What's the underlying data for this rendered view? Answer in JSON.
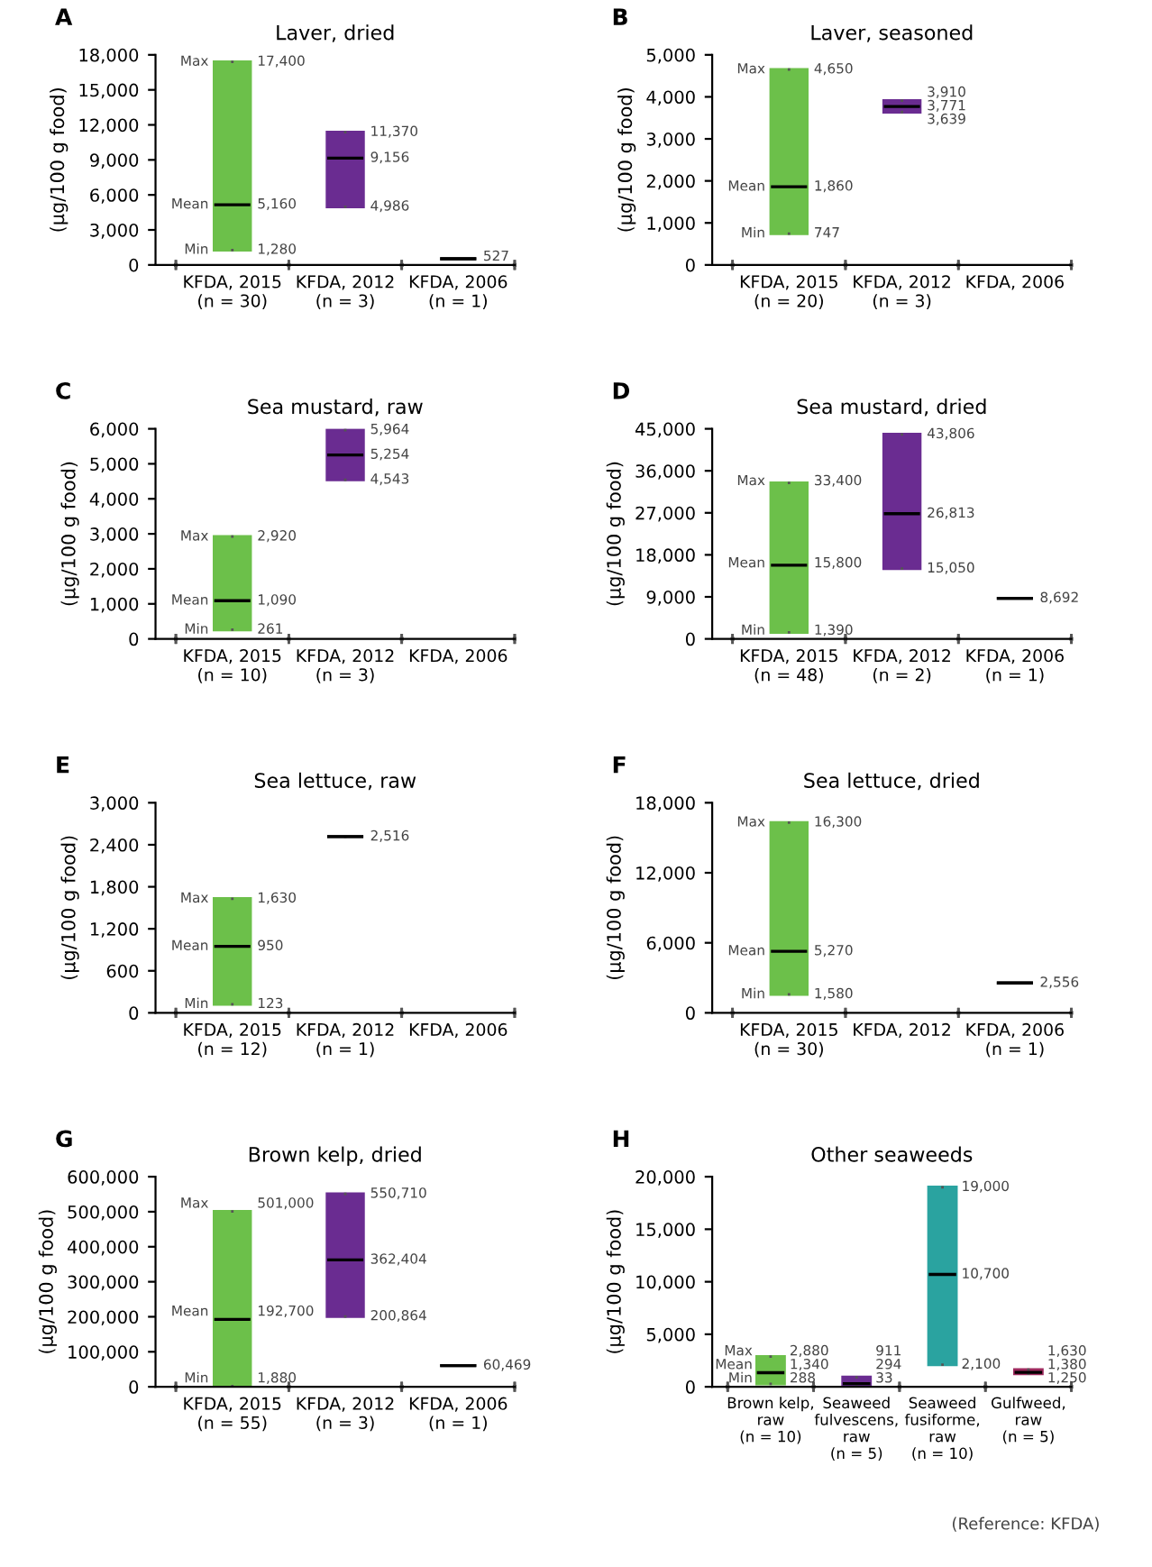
{
  "chart_data": [
    {
      "type": "box",
      "title": "Laver, dried",
      "ylabel": "(μg/100 g food)",
      "categories": [
        "KFDA, 2015\n(n = 30)",
        "KFDA, 2012\n(n = 3)",
        "KFDA, 2006\n(n = 1)"
      ],
      "boxes": [
        {
          "low": 1280,
          "q1": 1280,
          "median": 5160,
          "q3": 17400,
          "high": 17400
        },
        {
          "low": 4986,
          "q1": 4986,
          "median": 9156,
          "q3": 11370,
          "high": 11370
        },
        {
          "low": 527,
          "q1": 527,
          "median": 527,
          "q3": 527,
          "high": 527
        }
      ],
      "value_labels": [
        [
          "1,280",
          "5,160",
          "17,400"
        ],
        [
          "4,986",
          "9,156",
          "11,370"
        ],
        [
          "527"
        ]
      ],
      "colors": [
        "#6cc04a",
        "#6a2c91",
        "#222222"
      ],
      "ylim": [
        0,
        18000
      ],
      "yticks": [
        0,
        {
          "value": 3000,
          "label": "3,000"
        },
        {
          "value": 6000,
          "label": "6,000"
        },
        {
          "value": 9000,
          "label": "9,000"
        },
        {
          "value": 12000,
          "label": "12,000"
        },
        {
          "value": 15000,
          "label": "15,000"
        },
        {
          "value": 18000,
          "label": "18,000"
        }
      ],
      "data_labels": true,
      "annotations": [
        "A",
        {
          "text": "Max",
          "x": "KFDA, 2015\n(n = 30)",
          "y": 17400
        },
        {
          "text": "Mean",
          "x": "KFDA, 2015\n(n = 30)",
          "y": 5160
        },
        {
          "text": "Min",
          "x": "KFDA, 2015\n(n = 30)",
          "y": 1280
        }
      ]
    },
    {
      "type": "box",
      "title": "Laver, seasoned",
      "ylabel": "(μg/100 g food)",
      "categories": [
        "KFDA, 2015\n(n = 20)",
        "KFDA, 2012\n(n = 3)",
        "KFDA, 2006"
      ],
      "boxes": [
        {
          "low": 747,
          "q1": 747,
          "median": 1860,
          "q3": 4650,
          "high": 4650
        },
        {
          "low": 3639,
          "q1": 3639,
          "median": 3771,
          "q3": 3910,
          "high": 3910
        },
        null
      ],
      "value_labels": [
        [
          "747",
          "1,860",
          "4,650"
        ],
        [
          "3,639",
          "3,771",
          "3,910"
        ],
        null
      ],
      "colors": [
        "#6cc04a",
        "#6a2c91",
        null
      ],
      "ylim": [
        0,
        5000
      ],
      "yticks": [
        0,
        {
          "value": 1000,
          "label": "1,000"
        },
        {
          "value": 2000,
          "label": "2,000"
        },
        {
          "value": 3000,
          "label": "3,000"
        },
        {
          "value": 4000,
          "label": "4,000"
        },
        {
          "value": 5000,
          "label": "5,000"
        }
      ],
      "data_labels": true,
      "annotations": [
        "B",
        {
          "text": "Max",
          "x": "KFDA, 2015\n(n = 20)",
          "y": 4650
        },
        {
          "text": "Mean",
          "x": "KFDA, 2015\n(n = 20)",
          "y": 1860
        },
        {
          "text": "Min",
          "x": "KFDA, 2015\n(n = 20)",
          "y": 747
        }
      ]
    },
    {
      "type": "box",
      "title": "Sea mustard, raw",
      "ylabel": "(μg/100 g food)",
      "categories": [
        "KFDA, 2015\n(n = 10)",
        "KFDA, 2012\n(n = 3)",
        "KFDA, 2006"
      ],
      "boxes": [
        {
          "low": 261,
          "q1": 261,
          "median": 1090,
          "q3": 2920,
          "high": 2920
        },
        {
          "low": 4543,
          "q1": 4543,
          "median": 5254,
          "q3": 5964,
          "high": 5964
        },
        null
      ],
      "value_labels": [
        [
          "261",
          "1,090",
          "2,920"
        ],
        [
          "4,543",
          "5,254",
          "5,964"
        ],
        null
      ],
      "colors": [
        "#6cc04a",
        "#6a2c91",
        null
      ],
      "ylim": [
        0,
        6000
      ],
      "yticks": [
        0,
        {
          "value": 1000,
          "label": "1,000"
        },
        {
          "value": 2000,
          "label": "2,000"
        },
        {
          "value": 3000,
          "label": "3,000"
        },
        {
          "value": 4000,
          "label": "4,000"
        },
        {
          "value": 5000,
          "label": "5,000"
        },
        {
          "value": 6000,
          "label": "6,000"
        }
      ],
      "data_labels": true,
      "annotations": [
        "C",
        {
          "text": "Max",
          "x": "KFDA, 2015\n(n = 10)",
          "y": 2920
        },
        {
          "text": "Mean",
          "x": "KFDA, 2015\n(n = 10)",
          "y": 1090
        },
        {
          "text": "Min",
          "x": "KFDA, 2015\n(n = 10)",
          "y": 261
        }
      ]
    },
    {
      "type": "box",
      "title": "Sea mustard, dried",
      "ylabel": "(μg/100 g food)",
      "categories": [
        "KFDA, 2015\n(n = 48)",
        "KFDA, 2012\n(n = 2)",
        "KFDA, 2006\n(n = 1)"
      ],
      "boxes": [
        {
          "low": 1390,
          "q1": 1390,
          "median": 15800,
          "q3": 33400,
          "high": 33400
        },
        {
          "low": 15050,
          "q1": 15050,
          "median": 26813,
          "q3": 43806,
          "high": 43806
        },
        {
          "low": 8692,
          "q1": 8692,
          "median": 8692,
          "q3": 8692,
          "high": 8692
        }
      ],
      "value_labels": [
        [
          "1,390",
          "15,800",
          "33,400"
        ],
        [
          "15,050",
          "26,813",
          "43,806"
        ],
        [
          "8,692"
        ]
      ],
      "colors": [
        "#6cc04a",
        "#6a2c91",
        "#222222"
      ],
      "ylim": [
        0,
        45000
      ],
      "yticks": [
        0,
        {
          "value": 9000,
          "label": "9,000"
        },
        {
          "value": 18000,
          "label": "18,000"
        },
        {
          "value": 27000,
          "label": "27,000"
        },
        {
          "value": 36000,
          "label": "36,000"
        },
        {
          "value": 45000,
          "label": "45,000"
        }
      ],
      "data_labels": true,
      "annotations": [
        "D",
        {
          "text": "Max",
          "x": "KFDA, 2015\n(n = 48)",
          "y": 33400
        },
        {
          "text": "Mean",
          "x": "KFDA, 2015\n(n = 48)",
          "y": 15800
        },
        {
          "text": "Min",
          "x": "KFDA, 2015\n(n = 48)",
          "y": 1390
        }
      ]
    },
    {
      "type": "box",
      "title": "Sea lettuce, raw",
      "ylabel": "(μg/100 g food)",
      "categories": [
        "KFDA, 2015\n(n = 12)",
        "KFDA, 2012\n(n = 1)",
        "KFDA, 2006"
      ],
      "boxes": [
        {
          "low": 123,
          "q1": 123,
          "median": 950,
          "q3": 1630,
          "high": 1630
        },
        {
          "low": 2516,
          "q1": 2516,
          "median": 2516,
          "q3": 2516,
          "high": 2516
        },
        null
      ],
      "value_labels": [
        [
          "123",
          "950",
          "1,630"
        ],
        [
          "2,516"
        ],
        null
      ],
      "colors": [
        "#6cc04a",
        "#222222",
        null
      ],
      "ylim": [
        0,
        3000
      ],
      "yticks": [
        0,
        600,
        {
          "value": 1200,
          "label": "1,200"
        },
        {
          "value": 1800,
          "label": "1,800"
        },
        {
          "value": 2400,
          "label": "2,400"
        },
        {
          "value": 3000,
          "label": "3,000"
        }
      ],
      "data_labels": true,
      "annotations": [
        "E",
        {
          "text": "Max",
          "x": "KFDA, 2015\n(n = 12)",
          "y": 1630
        },
        {
          "text": "Mean",
          "x": "KFDA, 2015\n(n = 12)",
          "y": 950
        },
        {
          "text": "Min",
          "x": "KFDA, 2015\n(n = 12)",
          "y": 123
        }
      ]
    },
    {
      "type": "box",
      "title": "Sea lettuce, dried",
      "ylabel": "(μg/100 g food)",
      "categories": [
        "KFDA, 2015\n(n = 30)",
        "KFDA, 2012",
        "KFDA, 2006\n(n = 1)"
      ],
      "boxes": [
        {
          "low": 1580,
          "q1": 1580,
          "median": 5270,
          "q3": 16300,
          "high": 16300
        },
        null,
        {
          "low": 2556,
          "q1": 2556,
          "median": 2556,
          "q3": 2556,
          "high": 2556
        }
      ],
      "value_labels": [
        [
          "1,580",
          "5,270",
          "16,300"
        ],
        null,
        [
          "2,556"
        ]
      ],
      "colors": [
        "#6cc04a",
        null,
        "#222222"
      ],
      "ylim": [
        0,
        18000
      ],
      "yticks": [
        0,
        {
          "value": 6000,
          "label": "6,000"
        },
        {
          "value": 12000,
          "label": "12,000"
        },
        {
          "value": 18000,
          "label": "18,000"
        }
      ],
      "data_labels": true,
      "annotations": [
        "F",
        {
          "text": "Max",
          "x": "KFDA, 2015\n(n = 30)",
          "y": 16300
        },
        {
          "text": "Mean",
          "x": "KFDA, 2015\n(n = 30)",
          "y": 5270
        },
        {
          "text": "Min",
          "x": "KFDA, 2015\n(n = 30)",
          "y": 1580
        }
      ]
    },
    {
      "type": "box",
      "title": "Brown kelp, dried",
      "ylabel": "(μg/100 g food)",
      "categories": [
        "KFDA, 2015\n(n = 55)",
        "KFDA, 2012\n(n = 3)",
        "KFDA, 2006\n(n = 1)"
      ],
      "boxes": [
        {
          "low": 1880,
          "q1": 1880,
          "median": 192700,
          "q3": 501000,
          "high": 501000
        },
        {
          "low": 200864,
          "q1": 200864,
          "median": 362404,
          "q3": 550710,
          "high": 550710
        },
        {
          "low": 60469,
          "q1": 60469,
          "median": 60469,
          "q3": 60469,
          "high": 60469
        }
      ],
      "value_labels": [
        [
          "1,880",
          "192,700",
          "501,000"
        ],
        [
          "200,864",
          "362,404",
          "550,710"
        ],
        [
          "60,469"
        ]
      ],
      "colors": [
        "#6cc04a",
        "#6a2c91",
        "#222222"
      ],
      "ylim": [
        0,
        600000
      ],
      "yticks": [
        0,
        {
          "value": 100000,
          "label": "100,000"
        },
        {
          "value": 200000,
          "label": "200,000"
        },
        {
          "value": 300000,
          "label": "300,000"
        },
        {
          "value": 400000,
          "label": "400,000"
        },
        {
          "value": 500000,
          "label": "500,000"
        },
        {
          "value": 600000,
          "label": "600,000"
        }
      ],
      "data_labels": true,
      "annotations": [
        "G",
        {
          "text": "Max",
          "x": "KFDA, 2015\n(n = 55)",
          "y": 501000
        },
        {
          "text": "Mean",
          "x": "KFDA, 2015\n(n = 55)",
          "y": 192700
        },
        {
          "text": "Min",
          "x": "KFDA, 2015\n(n = 55)",
          "y": 1880
        }
      ]
    },
    {
      "type": "box",
      "title": "Other seaweeds",
      "ylabel": "(μg/100 g food)",
      "categories": [
        "Brown kelp,\nraw\n(n = 10)",
        "Seaweed\nfulvescens,\nraw\n(n = 5)",
        "Seaweed\nfusiforme,\nraw\n(n = 10)",
        "Gulfweed,\nraw\n(n = 5)"
      ],
      "boxes": [
        {
          "low": 288,
          "q1": 288,
          "median": 1340,
          "q3": 2880,
          "high": 2880
        },
        {
          "low": 33,
          "q1": 33,
          "median": 294,
          "q3": 911,
          "high": 911
        },
        {
          "low": 2100,
          "q1": 2100,
          "median": 10700,
          "q3": 19000,
          "high": 19000
        },
        {
          "low": 1250,
          "q1": 1250,
          "median": 1380,
          "q3": 1630,
          "high": 1630
        }
      ],
      "value_labels": [
        [
          "288",
          "1,340",
          "2,880"
        ],
        [
          "33",
          "294",
          "911"
        ],
        [
          "2,100",
          "10,700",
          "19,000"
        ],
        [
          "1,250",
          "1,380",
          "1,630"
        ]
      ],
      "colors": [
        "#6cc04a",
        "#6a2c91",
        "#2aa3a0",
        "#9e2a5e"
      ],
      "ylim": [
        0,
        20000
      ],
      "yticks": [
        0,
        {
          "value": 5000,
          "label": "5,000"
        },
        {
          "value": 10000,
          "label": "10,000"
        },
        {
          "value": 15000,
          "label": "15,000"
        },
        {
          "value": 20000,
          "label": "20,000"
        }
      ],
      "data_labels": true,
      "annotations": [
        "H",
        {
          "text": "Max",
          "x": "Brown kelp,\nraw\n(n = 10)",
          "y": 2880
        },
        {
          "text": "Mean",
          "x": "Brown kelp,\nraw\n(n = 10)",
          "y": 1340
        },
        {
          "text": "Min",
          "x": "Brown kelp,\nraw\n(n = 10)",
          "y": 288
        },
        "(Reference: KFDA)"
      ]
    }
  ]
}
